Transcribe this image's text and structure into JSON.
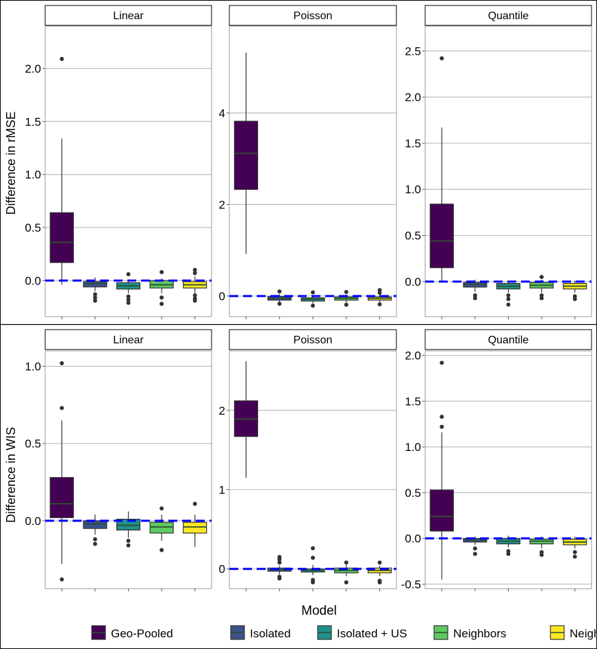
{
  "chart_data": {
    "type": "boxplot",
    "xlabel": "Model",
    "categories": [
      "Geo-Pooled",
      "Isolated",
      "Isolated + US",
      "Neighbors",
      "Neighbors + US"
    ],
    "colors": [
      "#440154",
      "#3b528b",
      "#21908c",
      "#5ec962",
      "#fde725"
    ],
    "rows": [
      {
        "ylabel": "Difference in rMSE",
        "panels": [
          {
            "title": "Linear",
            "ylim": [
              -0.34,
              2.4
            ],
            "ticks": [
              0.0,
              0.5,
              1.0,
              1.5,
              2.0
            ],
            "tick_labels": [
              "0.0",
              "0.5",
              "1.0",
              "1.5",
              "2.0"
            ],
            "boxes": [
              {
                "q1": 0.17,
                "median": 0.36,
                "q3": 0.64,
                "lo": -0.04,
                "hi": 1.34,
                "outliers": [
                  2.09
                ]
              },
              {
                "q1": -0.06,
                "median": -0.03,
                "q3": -0.01,
                "lo": -0.1,
                "hi": 0.03,
                "outliers": [
                  -0.13,
                  -0.16,
                  -0.19
                ]
              },
              {
                "q1": -0.08,
                "median": -0.05,
                "q3": -0.02,
                "lo": -0.12,
                "hi": 0.01,
                "outliers": [
                  -0.15,
                  -0.18,
                  -0.21,
                  0.06
                ]
              },
              {
                "q1": -0.07,
                "median": -0.04,
                "q3": 0.0,
                "lo": -0.12,
                "hi": 0.02,
                "outliers": [
                  -0.16,
                  -0.22,
                  0.08
                ]
              },
              {
                "q1": -0.07,
                "median": -0.04,
                "q3": -0.01,
                "lo": -0.12,
                "hi": 0.04,
                "outliers": [
                  -0.14,
                  -0.17,
                  -0.19,
                  0.07,
                  0.1
                ]
              }
            ]
          },
          {
            "title": "Poisson",
            "ylim": [
              -0.45,
              5.9
            ],
            "ticks": [
              0,
              2,
              4
            ],
            "tick_labels": [
              "0",
              "2",
              "4"
            ],
            "boxes": [
              {
                "q1": 2.33,
                "median": 3.12,
                "q3": 3.82,
                "lo": 0.92,
                "hi": 5.32,
                "outliers": []
              },
              {
                "q1": -0.09,
                "median": -0.05,
                "q3": -0.01,
                "lo": -0.14,
                "hi": 0.04,
                "outliers": [
                  -0.17,
                  0.1
                ]
              },
              {
                "q1": -0.11,
                "median": -0.07,
                "q3": -0.04,
                "lo": -0.16,
                "hi": 0.02,
                "outliers": [
                  -0.21,
                  0.08
                ]
              },
              {
                "q1": -0.09,
                "median": -0.05,
                "q3": -0.02,
                "lo": -0.14,
                "hi": 0.03,
                "outliers": [
                  -0.19,
                  0.09
                ]
              },
              {
                "q1": -0.09,
                "median": -0.05,
                "q3": -0.02,
                "lo": -0.13,
                "hi": 0.04,
                "outliers": [
                  -0.18,
                  0.07,
                  0.13
                ]
              }
            ]
          },
          {
            "title": "Quantile",
            "ylim": [
              -0.38,
              2.77
            ],
            "ticks": [
              0.0,
              0.5,
              1.0,
              1.5,
              2.0,
              2.5
            ],
            "tick_labels": [
              "0.0",
              "0.5",
              "1.0",
              "1.5",
              "2.0",
              "2.5"
            ],
            "boxes": [
              {
                "q1": 0.15,
                "median": 0.44,
                "q3": 0.84,
                "lo": 0.0,
                "hi": 1.67,
                "outliers": [
                  2.42
                ]
              },
              {
                "q1": -0.06,
                "median": -0.03,
                "q3": -0.01,
                "lo": -0.11,
                "hi": 0.02,
                "outliers": [
                  -0.15,
                  -0.18
                ]
              },
              {
                "q1": -0.08,
                "median": -0.05,
                "q3": -0.02,
                "lo": -0.12,
                "hi": 0.01,
                "outliers": [
                  -0.15,
                  -0.19,
                  -0.25
                ]
              },
              {
                "q1": -0.07,
                "median": -0.04,
                "q3": -0.01,
                "lo": -0.12,
                "hi": 0.02,
                "outliers": [
                  -0.15,
                  -0.18,
                  0.05
                ]
              },
              {
                "q1": -0.08,
                "median": -0.05,
                "q3": -0.02,
                "lo": -0.12,
                "hi": 0.01,
                "outliers": [
                  -0.16,
                  -0.19
                ]
              }
            ]
          }
        ]
      },
      {
        "ylabel": "Difference in WIS",
        "panels": [
          {
            "title": "Linear",
            "ylim": [
              -0.44,
              1.1
            ],
            "ticks": [
              0.0,
              0.5,
              1.0
            ],
            "tick_labels": [
              "0.0",
              "0.5",
              "1.0"
            ],
            "boxes": [
              {
                "q1": 0.02,
                "median": 0.11,
                "q3": 0.28,
                "lo": -0.28,
                "hi": 0.65,
                "outliers": [
                  1.02,
                  0.73,
                  -0.38
                ]
              },
              {
                "q1": -0.05,
                "median": -0.02,
                "q3": 0.0,
                "lo": -0.09,
                "hi": 0.04,
                "outliers": [
                  -0.12,
                  -0.15
                ]
              },
              {
                "q1": -0.06,
                "median": -0.03,
                "q3": 0.01,
                "lo": -0.11,
                "hi": 0.06,
                "outliers": [
                  -0.13,
                  -0.16
                ]
              },
              {
                "q1": -0.08,
                "median": -0.04,
                "q3": -0.01,
                "lo": -0.13,
                "hi": 0.04,
                "outliers": [
                  -0.19,
                  0.08
                ]
              },
              {
                "q1": -0.08,
                "median": -0.04,
                "q3": -0.01,
                "lo": -0.17,
                "hi": 0.04,
                "outliers": [
                  0.11
                ]
              }
            ]
          },
          {
            "title": "Poisson",
            "ylim": [
              -0.25,
              2.75
            ],
            "ticks": [
              0,
              1,
              2
            ],
            "tick_labels": [
              "0",
              "1",
              "2"
            ],
            "boxes": [
              {
                "q1": 1.67,
                "median": 1.89,
                "q3": 2.12,
                "lo": 1.15,
                "hi": 2.62,
                "outliers": []
              },
              {
                "q1": -0.03,
                "median": -0.01,
                "q3": 0.01,
                "lo": -0.07,
                "hi": 0.04,
                "outliers": [
                  -0.1,
                  -0.12,
                  0.08,
                  0.12,
                  0.15
                ]
              },
              {
                "q1": -0.04,
                "median": -0.02,
                "q3": 0.0,
                "lo": -0.08,
                "hi": 0.05,
                "outliers": [
                  -0.14,
                  -0.17,
                  0.14,
                  0.26
                ]
              },
              {
                "q1": -0.05,
                "median": -0.02,
                "q3": 0.01,
                "lo": -0.09,
                "hi": 0.05,
                "outliers": [
                  -0.17,
                  0.08
                ]
              },
              {
                "q1": -0.05,
                "median": -0.02,
                "q3": 0.01,
                "lo": -0.09,
                "hi": 0.04,
                "outliers": [
                  -0.15,
                  -0.17,
                  0.08
                ]
              }
            ]
          },
          {
            "title": "Quantile",
            "ylim": [
              -0.55,
              2.05
            ],
            "ticks": [
              -0.5,
              0.0,
              0.5,
              1.0,
              1.5,
              2.0
            ],
            "tick_labels": [
              "-0.5",
              "0.0",
              "0.5",
              "1.0",
              "1.5",
              "2.0"
            ],
            "boxes": [
              {
                "q1": 0.08,
                "median": 0.24,
                "q3": 0.53,
                "lo": -0.45,
                "hi": 1.16,
                "outliers": [
                  1.92,
                  1.33,
                  1.22
                ]
              },
              {
                "q1": -0.04,
                "median": -0.02,
                "q3": 0.0,
                "lo": -0.07,
                "hi": 0.02,
                "outliers": [
                  -0.11,
                  -0.17
                ]
              },
              {
                "q1": -0.06,
                "median": -0.03,
                "q3": 0.0,
                "lo": -0.1,
                "hi": 0.03,
                "outliers": [
                  -0.14,
                  -0.17
                ]
              },
              {
                "q1": -0.06,
                "median": -0.03,
                "q3": -0.01,
                "lo": -0.11,
                "hi": 0.02,
                "outliers": [
                  -0.15,
                  -0.18
                ]
              },
              {
                "q1": -0.07,
                "median": -0.04,
                "q3": -0.01,
                "lo": -0.11,
                "hi": 0.02,
                "outliers": [
                  -0.15,
                  -0.2
                ]
              }
            ]
          }
        ]
      }
    ],
    "reference_line": {
      "value": 0,
      "color": "#0000ff",
      "style": "dashed"
    },
    "legend": {
      "placement": "bottom"
    }
  }
}
